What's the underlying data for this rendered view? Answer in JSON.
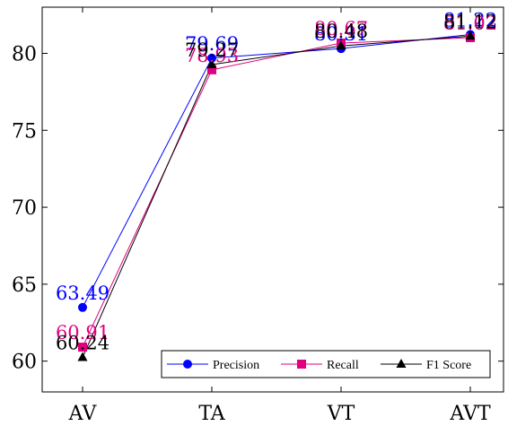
{
  "chart_data": {
    "type": "line",
    "categories": [
      "AV",
      "TA",
      "VT",
      "AVT"
    ],
    "ylim": [
      58,
      83
    ],
    "yticks": [
      60,
      65,
      70,
      75,
      80
    ],
    "grid": false,
    "legend_position": "bottom-right",
    "series": [
      {
        "name": "Precision",
        "values": [
          63.49,
          79.69,
          80.31,
          81.22
        ],
        "color": "#0000ff",
        "marker": "circle"
      },
      {
        "name": "Recall",
        "values": [
          60.91,
          78.93,
          80.67,
          81.02
        ],
        "color": "#e0007f",
        "marker": "square"
      },
      {
        "name": "F1 Score",
        "values": [
          60.24,
          79.27,
          80.48,
          81.12
        ],
        "color": "#000000",
        "marker": "triangle"
      }
    ]
  }
}
